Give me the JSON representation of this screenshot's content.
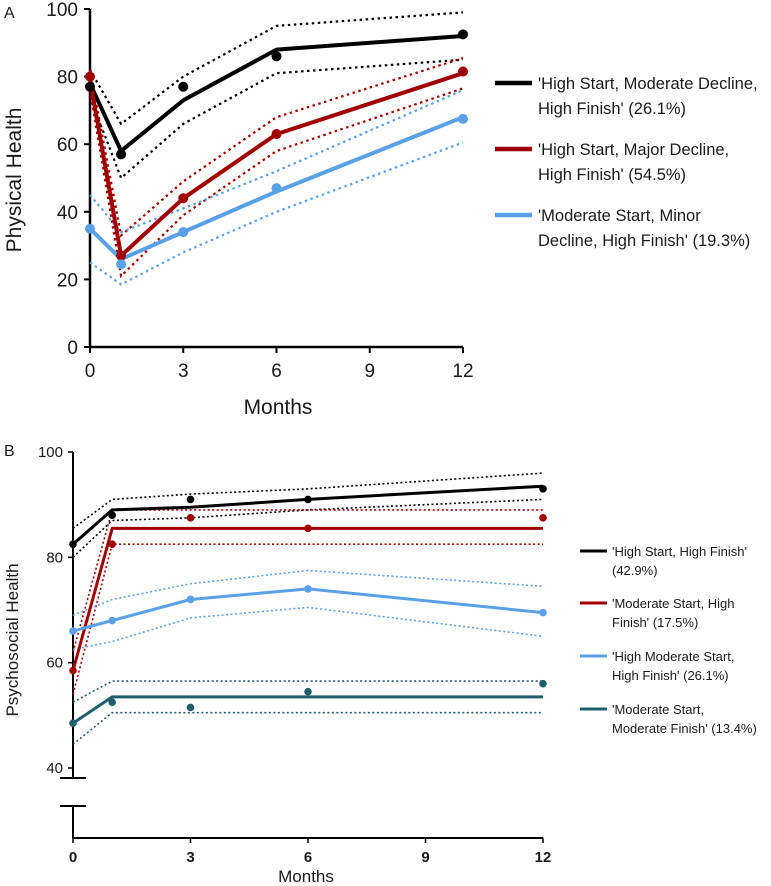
{
  "chart_data": [
    {
      "panel": "A",
      "type": "line",
      "xlabel": "Months",
      "ylabel": "Physical Health",
      "x_ticks": [
        0,
        3,
        6,
        9,
        12
      ],
      "y_ticks": [
        0,
        20,
        40,
        60,
        80,
        100
      ],
      "xlim": [
        0,
        12
      ],
      "ylim": [
        0,
        100
      ],
      "x": [
        0,
        1,
        3,
        6,
        12
      ],
      "legend_position": "right",
      "series": [
        {
          "name": "'High Start, Moderate Decline, High Finish' (26.1%)",
          "legend_lines": [
            "'High Start, Moderate Decline,",
            "High Finish' (26.1%)"
          ],
          "color": "#000000",
          "fitted": [
            78,
            58,
            73,
            88,
            92
          ],
          "observed": [
            77,
            57,
            77,
            86,
            92.5
          ],
          "upper_ci": [
            82,
            66,
            80,
            95,
            99
          ],
          "lower_ci": [
            74,
            50,
            66,
            81,
            85
          ]
        },
        {
          "name": "'High Start, Major Decline, High Finish' (54.5%)",
          "legend_lines": [
            "'High Start, Major Decline,",
            "High Finish' (54.5%)"
          ],
          "color": "#a00000",
          "fitted": [
            79,
            27,
            44,
            63,
            81
          ],
          "observed": [
            80,
            27,
            44,
            63,
            81.5
          ],
          "upper_ci": [
            82,
            33,
            49,
            68,
            85.5
          ],
          "lower_ci": [
            76,
            21,
            39,
            58,
            76.5
          ]
        },
        {
          "name": "'Moderate Start, Minor Decline, High Finish' (19.3%)",
          "legend_lines": [
            "'Moderate Start, Minor",
            "Decline, High Finish' (19.3%)"
          ],
          "color": "#5aa0e6",
          "fitted": [
            35,
            26,
            34,
            46,
            68
          ],
          "observed": [
            35,
            24.5,
            34,
            47,
            67.5
          ],
          "upper_ci": [
            45,
            34,
            41,
            52,
            76
          ],
          "lower_ci": [
            25,
            18.5,
            28,
            40,
            60.5
          ]
        }
      ]
    },
    {
      "panel": "B",
      "type": "line",
      "xlabel": "Months",
      "ylabel": "Psychosocial Health",
      "x_ticks": [
        0,
        3,
        6,
        9,
        12
      ],
      "y_ticks": [
        40,
        60,
        80,
        100
      ],
      "xlim": [
        0,
        12
      ],
      "ylim": [
        40,
        100
      ],
      "axis_break": true,
      "x": [
        0,
        1,
        3,
        6,
        12
      ],
      "legend_position": "right",
      "series": [
        {
          "name": "'High Start, High Finish' (42.9%)",
          "legend_lines": [
            "'High Start, High Finish'",
            "(42.9%)"
          ],
          "color": "#000000",
          "fitted": [
            82.5,
            89,
            89.5,
            91,
            93.5
          ],
          "observed": [
            82.5,
            88,
            91,
            91,
            93
          ],
          "upper_ci": [
            85.5,
            91,
            92,
            93,
            96
          ],
          "lower_ci": [
            80,
            87,
            87.5,
            89,
            91
          ]
        },
        {
          "name": "'Moderate Start, High Finish' (17.5%)",
          "legend_lines": [
            "'Moderate Start, High",
            "Finish' (17.5%)"
          ],
          "color": "#a00000",
          "fitted": [
            58.5,
            85.5,
            85.5,
            85.5,
            85.5
          ],
          "observed": [
            58.5,
            82.5,
            87.5,
            85.5,
            87.5
          ],
          "upper_ci": [
            62,
            89,
            89,
            89,
            89
          ],
          "lower_ci": [
            54,
            82.5,
            82.5,
            82.5,
            82.5
          ]
        },
        {
          "name": "'High Moderate Start, High Finish' (26.1%)",
          "legend_lines": [
            "'High Moderate Start,",
            "High Finish' (26.1%)"
          ],
          "color": "#5aa0e6",
          "fitted": [
            66,
            68,
            72,
            74,
            69.5
          ],
          "observed": [
            66,
            68,
            72,
            74,
            69.5
          ],
          "upper_ci": [
            69,
            72,
            75,
            77.5,
            74.5
          ],
          "lower_ci": [
            62.5,
            64,
            68.5,
            70.5,
            65
          ]
        },
        {
          "name": "'Moderate Start, Moderate Finish' (13.4%)",
          "legend_lines": [
            "'Moderate Start,",
            "Moderate Finish' (13.4%)"
          ],
          "color": "#1f5f6b",
          "fitted": [
            48.5,
            53.5,
            53.5,
            53.5,
            53.5
          ],
          "observed": [
            48.5,
            52.5,
            51.5,
            54.5,
            56
          ],
          "upper_ci": [
            52.5,
            56.5,
            56.5,
            56.5,
            56.5
          ],
          "lower_ci": [
            44.5,
            50.5,
            50.5,
            50.5,
            50.5
          ]
        }
      ]
    }
  ]
}
